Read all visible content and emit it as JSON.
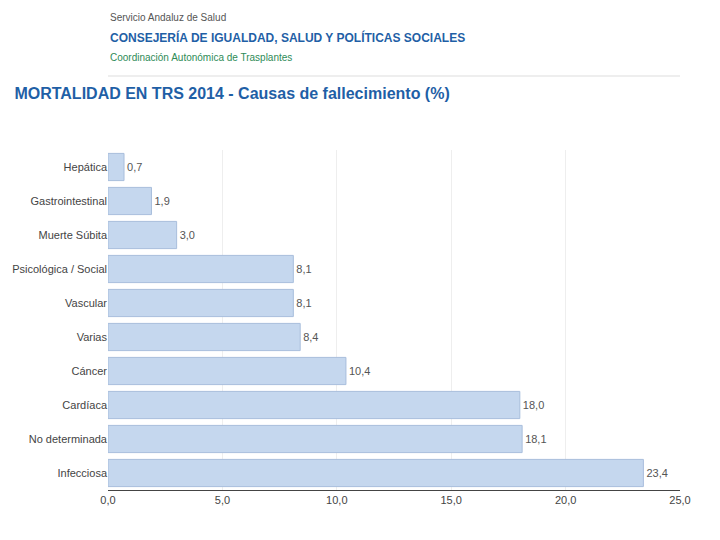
{
  "chart_data": {
    "type": "bar",
    "orientation": "horizontal",
    "title": "MORTALIDAD EN TRS 2014 - Causas de fallecimiento (%)",
    "annotations": [
      "Servicio Andaluz de Salud",
      "CONSEJERÍA DE IGUALDAD, SALUD Y POLÍTICAS SOCIALES",
      "Coordinación Autonómica de Trasplantes"
    ],
    "categories": [
      "Hepática",
      "Gastrointestinal",
      "Muerte Súbita",
      "Psicológica / Social",
      "Vascular",
      "Varias",
      "Cáncer",
      "Cardíaca",
      "No determinada",
      "Infecciosa"
    ],
    "values": [
      0.7,
      1.9,
      3.0,
      8.1,
      8.1,
      8.4,
      10.4,
      18.0,
      18.1,
      23.4
    ],
    "value_labels": [
      "0,7",
      "1,9",
      "3,0",
      "8,1",
      "8,1",
      "8,4",
      "10,4",
      "18,0",
      "18,1",
      "23,4"
    ],
    "data_labels": true,
    "color": "#c5d7ee",
    "xlim": [
      0,
      25
    ],
    "xticks": [
      {
        "value": 0,
        "label": "0,0"
      },
      {
        "value": 5,
        "label": "5,0"
      },
      {
        "value": 10,
        "label": "10,0"
      },
      {
        "value": 15,
        "label": "15,0"
      },
      {
        "value": 20,
        "label": "20,0"
      },
      {
        "value": 25,
        "label": "25,0"
      }
    ],
    "grid": true
  }
}
